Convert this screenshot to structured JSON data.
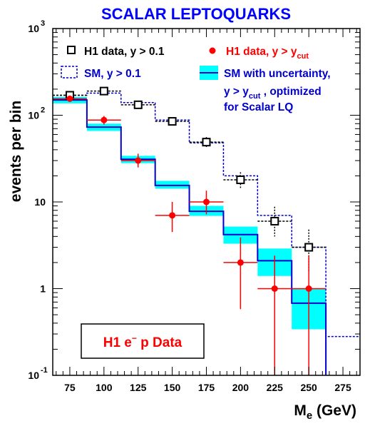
{
  "chart_data": {
    "type": "step-histogram",
    "title": "SCALAR LEPTOQUARKS",
    "xlabel": "M",
    "xlabel_sub": "e",
    "xlabel_unit": " (GeV)",
    "ylabel": "events per bin",
    "xlim": [
      62.5,
      287.5
    ],
    "ylim": [
      0.1,
      1000
    ],
    "yscale": "log",
    "x_ticks": [
      75,
      100,
      125,
      150,
      175,
      200,
      225,
      250,
      275
    ],
    "y_ticks": [
      {
        "value": 0.1,
        "label": "10",
        "sup": "-1"
      },
      {
        "value": 1,
        "label": "1",
        "sup": ""
      },
      {
        "value": 10,
        "label": "10",
        "sup": ""
      },
      {
        "value": 100,
        "label": "10",
        "sup": "2"
      },
      {
        "value": 1000,
        "label": "10",
        "sup": "3"
      }
    ],
    "bin_edges": [
      62.5,
      87.5,
      112.5,
      137.5,
      162.5,
      187.5,
      212.5,
      237.5,
      262.5,
      287.5
    ],
    "series": [
      {
        "name": "H1 data, y > 0.1",
        "style": "open-square-markers",
        "color": "#000000",
        "x": [
          75,
          100,
          125,
          150,
          175,
          200,
          225,
          250
        ],
        "y": [
          170,
          190,
          132,
          85,
          49,
          18,
          6,
          3
        ],
        "y_low": [
          155,
          175,
          120,
          76,
          43,
          14.5,
          4,
          1.6
        ],
        "y_high": [
          185,
          205,
          145,
          94,
          56,
          22,
          8.8,
          4.8
        ],
        "x_err": 12.5
      },
      {
        "name": "SM, y > 0.1",
        "style": "dashed-step",
        "color": "#0000cc",
        "values": [
          170,
          180,
          140,
          88,
          48,
          20,
          7,
          3,
          0.28
        ]
      },
      {
        "name": "H1 data, y > y",
        "name_sub": "cut",
        "style": "filled-circle-markers",
        "color": "#ff0000",
        "x": [
          75,
          100,
          125,
          150,
          175,
          200,
          225,
          250
        ],
        "y": [
          155,
          88,
          30,
          7,
          10,
          2,
          1,
          1
        ],
        "y_low": [
          143,
          78,
          25,
          4.5,
          7.2,
          0.58,
          0.1,
          0.1
        ],
        "y_high": [
          167,
          98,
          36,
          10,
          13.5,
          3.9,
          2.4,
          2.4
        ],
        "x_err": 12.5
      },
      {
        "name": "SM with uncertainty,",
        "name_line2": "y > y",
        "name_line2_sub": "cut",
        "name_line2_rest": " , optimized",
        "name_line3": "for Scalar LQ",
        "style": "solid-step-with-band",
        "color": "#0000cc",
        "band_color": "#00ffff",
        "values": [
          150,
          73,
          31,
          15.5,
          7.8,
          4.2,
          2.1,
          0.68
        ],
        "band_low": [
          137,
          66,
          28,
          14.2,
          6.9,
          3.3,
          1.4,
          0.34
        ],
        "band_high": [
          163,
          80,
          34,
          17.5,
          9.0,
          5.2,
          2.9,
          1.0
        ]
      }
    ],
    "annotation": {
      "text": "H1 e",
      "sup": "−",
      "rest": " p Data",
      "color": "#ff0000"
    }
  }
}
